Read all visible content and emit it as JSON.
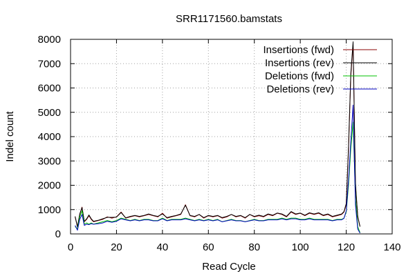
{
  "chart_data": {
    "type": "line",
    "title": "SRR1171560.bamstats",
    "xlabel": "Read Cycle",
    "ylabel": "Indel count",
    "xlim": [
      0,
      140
    ],
    "ylim": [
      0,
      8000
    ],
    "xticks": [
      "0",
      "20",
      "40",
      "60",
      "80",
      "100",
      "120",
      "140"
    ],
    "yticks": [
      "0",
      "1000",
      "2000",
      "3000",
      "4000",
      "5000",
      "6000",
      "7000",
      "8000"
    ],
    "grid": true,
    "legend_position": "top-right",
    "series": [
      {
        "name": "Insertions (fwd)",
        "color": "#8b0000",
        "x": [
          2,
          3,
          4,
          5,
          6,
          7,
          8,
          9,
          10,
          12,
          14,
          16,
          18,
          20,
          22,
          24,
          26,
          28,
          30,
          32,
          34,
          36,
          38,
          40,
          42,
          44,
          46,
          48,
          50,
          52,
          54,
          56,
          58,
          60,
          62,
          64,
          66,
          68,
          70,
          72,
          74,
          76,
          78,
          80,
          82,
          84,
          86,
          88,
          90,
          92,
          94,
          96,
          98,
          100,
          102,
          104,
          106,
          108,
          110,
          112,
          114,
          116,
          118,
          119,
          120,
          121,
          122,
          123,
          124,
          125,
          126
        ],
        "y": [
          700,
          300,
          800,
          1100,
          500,
          600,
          750,
          600,
          500,
          550,
          600,
          700,
          650,
          700,
          900,
          650,
          700,
          750,
          700,
          750,
          800,
          750,
          700,
          850,
          650,
          700,
          750,
          800,
          1200,
          750,
          700,
          800,
          650,
          750,
          700,
          750,
          650,
          700,
          800,
          700,
          750,
          650,
          800,
          700,
          750,
          700,
          800,
          750,
          850,
          800,
          700,
          900,
          800,
          850,
          750,
          850,
          800,
          850,
          750,
          800,
          700,
          750,
          800,
          900,
          1200,
          3500,
          6500,
          7800,
          2000,
          700,
          300
        ]
      },
      {
        "name": "Insertions (rev)",
        "color": "#000000",
        "x": [
          2,
          3,
          4,
          5,
          6,
          7,
          8,
          9,
          10,
          12,
          14,
          16,
          18,
          20,
          22,
          24,
          26,
          28,
          30,
          32,
          34,
          36,
          38,
          40,
          42,
          44,
          46,
          48,
          50,
          52,
          54,
          56,
          58,
          60,
          62,
          64,
          66,
          68,
          70,
          72,
          74,
          76,
          78,
          80,
          82,
          84,
          86,
          88,
          90,
          92,
          94,
          96,
          98,
          100,
          102,
          104,
          106,
          108,
          110,
          112,
          114,
          116,
          118,
          119,
          120,
          121,
          122,
          123,
          124,
          125,
          126
        ],
        "y": [
          720,
          280,
          820,
          1080,
          520,
          620,
          780,
          620,
          520,
          560,
          620,
          680,
          680,
          690,
          880,
          660,
          720,
          760,
          720,
          760,
          820,
          760,
          720,
          820,
          670,
          720,
          760,
          820,
          1180,
          760,
          720,
          800,
          670,
          760,
          720,
          760,
          670,
          720,
          800,
          720,
          760,
          670,
          800,
          720,
          770,
          720,
          820,
          770,
          860,
          820,
          720,
          920,
          820,
          860,
          770,
          870,
          820,
          870,
          770,
          820,
          720,
          770,
          820,
          920,
          1250,
          3600,
          6600,
          7900,
          2100,
          720,
          300
        ]
      },
      {
        "name": "Deletions (fwd)",
        "color": "#00c000",
        "x": [
          2,
          3,
          4,
          5,
          6,
          7,
          8,
          9,
          10,
          12,
          14,
          16,
          18,
          20,
          22,
          24,
          26,
          28,
          30,
          32,
          34,
          36,
          38,
          40,
          42,
          44,
          46,
          48,
          50,
          52,
          54,
          56,
          58,
          60,
          62,
          64,
          66,
          68,
          70,
          72,
          74,
          76,
          78,
          80,
          82,
          84,
          86,
          88,
          90,
          92,
          94,
          96,
          98,
          100,
          102,
          104,
          106,
          108,
          110,
          112,
          114,
          116,
          118,
          119,
          120,
          121,
          122,
          123,
          124,
          125,
          126
        ],
        "y": [
          300,
          200,
          700,
          950,
          400,
          450,
          400,
          450,
          400,
          450,
          500,
          550,
          500,
          550,
          650,
          600,
          550,
          600,
          550,
          600,
          600,
          550,
          550,
          650,
          550,
          600,
          600,
          600,
          650,
          600,
          550,
          600,
          550,
          600,
          550,
          600,
          500,
          550,
          600,
          550,
          550,
          500,
          550,
          600,
          550,
          550,
          600,
          600,
          600,
          650,
          600,
          650,
          650,
          600,
          600,
          650,
          600,
          600,
          600,
          600,
          550,
          600,
          600,
          650,
          900,
          2000,
          3500,
          4600,
          1500,
          300,
          50
        ]
      },
      {
        "name": "Deletions (rev)",
        "color": "#0000c0",
        "x": [
          2,
          3,
          4,
          5,
          6,
          7,
          8,
          9,
          10,
          12,
          14,
          16,
          18,
          20,
          22,
          24,
          26,
          28,
          30,
          32,
          34,
          36,
          38,
          40,
          42,
          44,
          46,
          48,
          50,
          52,
          54,
          56,
          58,
          60,
          62,
          64,
          66,
          68,
          70,
          72,
          74,
          76,
          78,
          80,
          82,
          84,
          86,
          88,
          90,
          92,
          94,
          96,
          98,
          100,
          102,
          104,
          106,
          108,
          110,
          112,
          114,
          116,
          118,
          119,
          120,
          121,
          122,
          123,
          124,
          125,
          126
        ],
        "y": [
          350,
          150,
          600,
          800,
          350,
          400,
          380,
          420,
          400,
          420,
          450,
          520,
          480,
          520,
          620,
          580,
          540,
          580,
          540,
          580,
          580,
          540,
          540,
          620,
          540,
          580,
          580,
          580,
          620,
          580,
          540,
          580,
          540,
          580,
          540,
          580,
          500,
          540,
          580,
          540,
          540,
          500,
          540,
          580,
          540,
          540,
          580,
          580,
          580,
          620,
          580,
          620,
          620,
          580,
          580,
          620,
          580,
          580,
          580,
          580,
          540,
          580,
          580,
          640,
          950,
          2200,
          3800,
          5300,
          1200,
          200,
          30
        ]
      }
    ]
  }
}
